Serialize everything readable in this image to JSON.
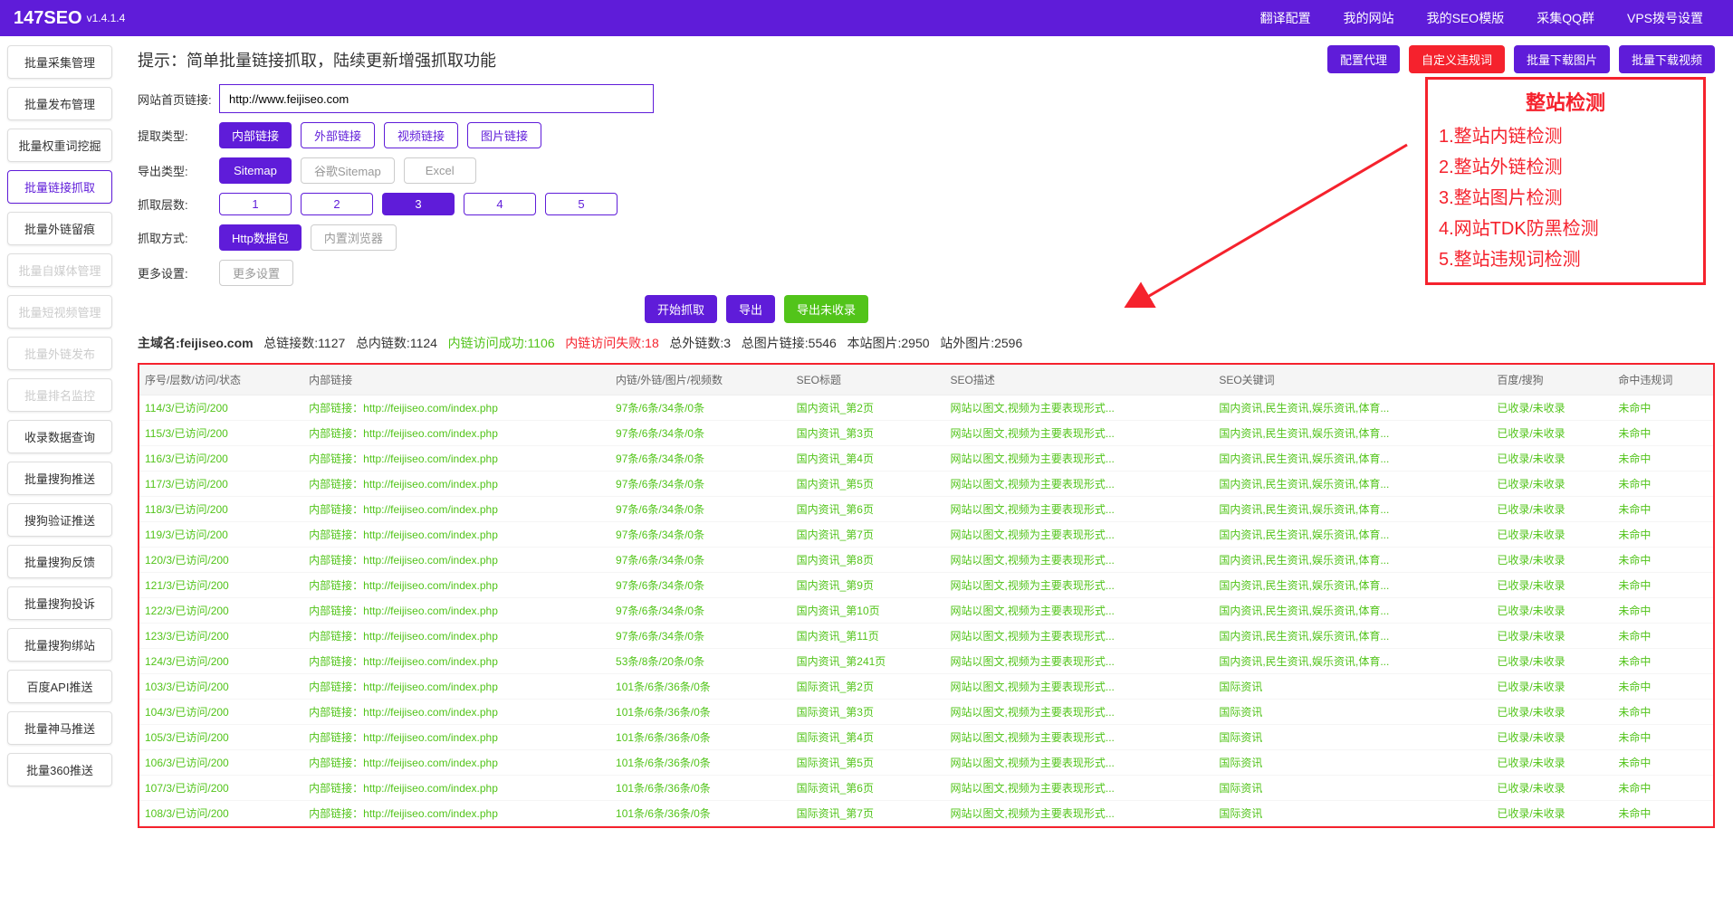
{
  "header": {
    "logo": "147SEO",
    "version": "v1.4.1.4",
    "nav": [
      "翻译配置",
      "我的网站",
      "我的SEO模版",
      "采集QQ群",
      "VPS拨号设置"
    ]
  },
  "sidebar": [
    {
      "label": "批量采集管理",
      "state": "normal"
    },
    {
      "label": "批量发布管理",
      "state": "normal"
    },
    {
      "label": "批量权重词挖掘",
      "state": "normal"
    },
    {
      "label": "批量链接抓取",
      "state": "active"
    },
    {
      "label": "批量外链留痕",
      "state": "normal"
    },
    {
      "label": "批量自媒体管理",
      "state": "disabled"
    },
    {
      "label": "批量短视频管理",
      "state": "disabled"
    },
    {
      "label": "批量外链发布",
      "state": "disabled"
    },
    {
      "label": "批量排名监控",
      "state": "disabled"
    },
    {
      "label": "收录数据查询",
      "state": "normal"
    },
    {
      "label": "批量搜狗推送",
      "state": "normal"
    },
    {
      "label": "搜狗验证推送",
      "state": "normal"
    },
    {
      "label": "批量搜狗反馈",
      "state": "normal"
    },
    {
      "label": "批量搜狗投诉",
      "state": "normal"
    },
    {
      "label": "批量搜狗绑站",
      "state": "normal"
    },
    {
      "label": "百度API推送",
      "state": "normal"
    },
    {
      "label": "批量神马推送",
      "state": "normal"
    },
    {
      "label": "批量360推送",
      "state": "normal"
    }
  ],
  "tip": "提示：简单批量链接抓取，陆续更新增强抓取功能",
  "topButtons": [
    {
      "label": "配置代理",
      "cls": "btn-purple"
    },
    {
      "label": "自定义违规词",
      "cls": "btn-red"
    },
    {
      "label": "批量下载图片",
      "cls": "btn-purple"
    },
    {
      "label": "批量下载视频",
      "cls": "btn-purple"
    }
  ],
  "form": {
    "urlLabel": "网站首页链接:",
    "urlValue": "http://www.feijiseo.com",
    "rows": [
      {
        "label": "提取类型:",
        "opts": [
          {
            "label": "内部链接",
            "cls": "btn-fill"
          },
          {
            "label": "外部链接",
            "cls": "btn-outline"
          },
          {
            "label": "视频链接",
            "cls": "btn-outline"
          },
          {
            "label": "图片链接",
            "cls": "btn-outline"
          }
        ]
      },
      {
        "label": "导出类型:",
        "opts": [
          {
            "label": "Sitemap",
            "cls": "btn-fill"
          },
          {
            "label": "谷歌Sitemap",
            "cls": "btn-outline-gray"
          },
          {
            "label": "Excel",
            "cls": "btn-outline-gray"
          }
        ]
      },
      {
        "label": "抓取层数:",
        "opts": [
          {
            "label": "1",
            "cls": "btn-outline"
          },
          {
            "label": "2",
            "cls": "btn-outline"
          },
          {
            "label": "3",
            "cls": "btn-fill"
          },
          {
            "label": "4",
            "cls": "btn-outline"
          },
          {
            "label": "5",
            "cls": "btn-outline"
          }
        ]
      },
      {
        "label": "抓取方式:",
        "opts": [
          {
            "label": "Http数据包",
            "cls": "btn-fill"
          },
          {
            "label": "内置浏览器",
            "cls": "btn-outline-gray"
          }
        ]
      },
      {
        "label": "更多设置:",
        "opts": [
          {
            "label": "更多设置",
            "cls": "btn-outline-gray"
          }
        ]
      }
    ]
  },
  "actions": [
    {
      "label": "开始抓取",
      "cls": "btn-purple"
    },
    {
      "label": "导出",
      "cls": "btn-purple"
    },
    {
      "label": "导出未收录",
      "cls": "btn-green"
    }
  ],
  "stats": {
    "domainLabel": "主域名:",
    "domain": "feijiseo.com",
    "totalLinks": "总链接数:1127",
    "internalLinks": "总内链数:1124",
    "success": "内链访问成功:1106",
    "fail": "内链访问失败:18",
    "external": "总外链数:3",
    "images": "总图片链接:5546",
    "siteImages": "本站图片:2950",
    "offsiteImages": "站外图片:2596"
  },
  "annotation": {
    "title": "整站检测",
    "items": [
      "1.整站内链检测",
      "2.整站外链检测",
      "3.整站图片检测",
      "4.网站TDK防黑检测",
      "5.整站违规词检测"
    ]
  },
  "table": {
    "headers": [
      "序号/层数/访问/状态",
      "内部链接",
      "内链/外链/图片/视频数",
      "SEO标题",
      "SEO描述",
      "SEO关键词",
      "百度/搜狗",
      "命中违规词"
    ],
    "rows": [
      [
        "114/3/已访问/200",
        "内部链接：http://feijiseo.com/index.php",
        "97条/6条/34条/0条",
        "国内资讯_第2页",
        "网站以图文,视频为主要表现形式...",
        "国内资讯,民生资讯,娱乐资讯,体育...",
        "已收录/未收录",
        "未命中"
      ],
      [
        "115/3/已访问/200",
        "内部链接：http://feijiseo.com/index.php",
        "97条/6条/34条/0条",
        "国内资讯_第3页",
        "网站以图文,视频为主要表现形式...",
        "国内资讯,民生资讯,娱乐资讯,体育...",
        "已收录/未收录",
        "未命中"
      ],
      [
        "116/3/已访问/200",
        "内部链接：http://feijiseo.com/index.php",
        "97条/6条/34条/0条",
        "国内资讯_第4页",
        "网站以图文,视频为主要表现形式...",
        "国内资讯,民生资讯,娱乐资讯,体育...",
        "已收录/未收录",
        "未命中"
      ],
      [
        "117/3/已访问/200",
        "内部链接：http://feijiseo.com/index.php",
        "97条/6条/34条/0条",
        "国内资讯_第5页",
        "网站以图文,视频为主要表现形式...",
        "国内资讯,民生资讯,娱乐资讯,体育...",
        "已收录/未收录",
        "未命中"
      ],
      [
        "118/3/已访问/200",
        "内部链接：http://feijiseo.com/index.php",
        "97条/6条/34条/0条",
        "国内资讯_第6页",
        "网站以图文,视频为主要表现形式...",
        "国内资讯,民生资讯,娱乐资讯,体育...",
        "已收录/未收录",
        "未命中"
      ],
      [
        "119/3/已访问/200",
        "内部链接：http://feijiseo.com/index.php",
        "97条/6条/34条/0条",
        "国内资讯_第7页",
        "网站以图文,视频为主要表现形式...",
        "国内资讯,民生资讯,娱乐资讯,体育...",
        "已收录/未收录",
        "未命中"
      ],
      [
        "120/3/已访问/200",
        "内部链接：http://feijiseo.com/index.php",
        "97条/6条/34条/0条",
        "国内资讯_第8页",
        "网站以图文,视频为主要表现形式...",
        "国内资讯,民生资讯,娱乐资讯,体育...",
        "已收录/未收录",
        "未命中"
      ],
      [
        "121/3/已访问/200",
        "内部链接：http://feijiseo.com/index.php",
        "97条/6条/34条/0条",
        "国内资讯_第9页",
        "网站以图文,视频为主要表现形式...",
        "国内资讯,民生资讯,娱乐资讯,体育...",
        "已收录/未收录",
        "未命中"
      ],
      [
        "122/3/已访问/200",
        "内部链接：http://feijiseo.com/index.php",
        "97条/6条/34条/0条",
        "国内资讯_第10页",
        "网站以图文,视频为主要表现形式...",
        "国内资讯,民生资讯,娱乐资讯,体育...",
        "已收录/未收录",
        "未命中"
      ],
      [
        "123/3/已访问/200",
        "内部链接：http://feijiseo.com/index.php",
        "97条/6条/34条/0条",
        "国内资讯_第11页",
        "网站以图文,视频为主要表现形式...",
        "国内资讯,民生资讯,娱乐资讯,体育...",
        "已收录/未收录",
        "未命中"
      ],
      [
        "124/3/已访问/200",
        "内部链接：http://feijiseo.com/index.php",
        "53条/8条/20条/0条",
        "国内资讯_第241页",
        "网站以图文,视频为主要表现形式...",
        "国内资讯,民生资讯,娱乐资讯,体育...",
        "已收录/未收录",
        "未命中"
      ],
      [
        "103/3/已访问/200",
        "内部链接：http://feijiseo.com/index.php",
        "101条/6条/36条/0条",
        "国际资讯_第2页",
        "网站以图文,视频为主要表现形式...",
        "国际资讯",
        "已收录/未收录",
        "未命中"
      ],
      [
        "104/3/已访问/200",
        "内部链接：http://feijiseo.com/index.php",
        "101条/6条/36条/0条",
        "国际资讯_第3页",
        "网站以图文,视频为主要表现形式...",
        "国际资讯",
        "已收录/未收录",
        "未命中"
      ],
      [
        "105/3/已访问/200",
        "内部链接：http://feijiseo.com/index.php",
        "101条/6条/36条/0条",
        "国际资讯_第4页",
        "网站以图文,视频为主要表现形式...",
        "国际资讯",
        "已收录/未收录",
        "未命中"
      ],
      [
        "106/3/已访问/200",
        "内部链接：http://feijiseo.com/index.php",
        "101条/6条/36条/0条",
        "国际资讯_第5页",
        "网站以图文,视频为主要表现形式...",
        "国际资讯",
        "已收录/未收录",
        "未命中"
      ],
      [
        "107/3/已访问/200",
        "内部链接：http://feijiseo.com/index.php",
        "101条/6条/36条/0条",
        "国际资讯_第6页",
        "网站以图文,视频为主要表现形式...",
        "国际资讯",
        "已收录/未收录",
        "未命中"
      ],
      [
        "108/3/已访问/200",
        "内部链接：http://feijiseo.com/index.php",
        "101条/6条/36条/0条",
        "国际资讯_第7页",
        "网站以图文,视频为主要表现形式...",
        "国际资讯",
        "已收录/未收录",
        "未命中"
      ]
    ]
  }
}
